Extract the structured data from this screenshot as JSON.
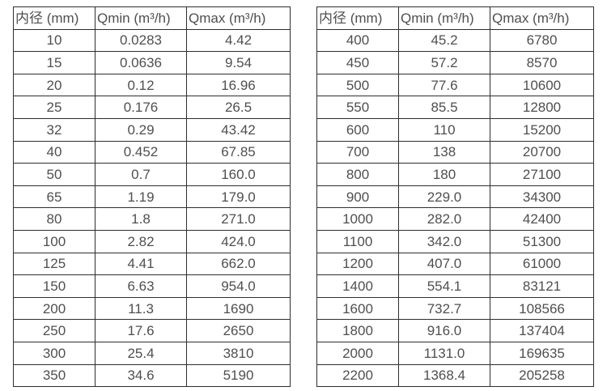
{
  "colors": {
    "border": "#2e2e2e",
    "text": "#4f4f4f",
    "background": "#ffffff"
  },
  "columns": [
    "内径 (mm)",
    "Qmin (m³/h)",
    "Qmax (m³/h)"
  ],
  "tables": [
    {
      "rows": [
        [
          "10",
          "0.0283",
          "4.42"
        ],
        [
          "15",
          "0.0636",
          "9.54"
        ],
        [
          "20",
          "0.12",
          "16.96"
        ],
        [
          "25",
          "0.176",
          "26.5"
        ],
        [
          "32",
          "0.29",
          "43.42"
        ],
        [
          "40",
          "0.452",
          "67.85"
        ],
        [
          "50",
          "0.7",
          "160.0"
        ],
        [
          "65",
          "1.19",
          "179.0"
        ],
        [
          "80",
          "1.8",
          "271.0"
        ],
        [
          "100",
          "2.82",
          "424.0"
        ],
        [
          "125",
          "4.41",
          "662.0"
        ],
        [
          "150",
          "6.63",
          "954.0"
        ],
        [
          "200",
          "11.3",
          "1690"
        ],
        [
          "250",
          "17.6",
          "2650"
        ],
        [
          "300",
          "25.4",
          "3810"
        ],
        [
          "350",
          "34.6",
          "5190"
        ]
      ]
    },
    {
      "rows": [
        [
          "400",
          "45.2",
          "6780"
        ],
        [
          "450",
          "57.2",
          "8570"
        ],
        [
          "500",
          "77.6",
          "10600"
        ],
        [
          "550",
          "85.5",
          "12800"
        ],
        [
          "600",
          "110",
          "15200"
        ],
        [
          "700",
          "138",
          "20700"
        ],
        [
          "800",
          "180",
          "27100"
        ],
        [
          "900",
          "229.0",
          "34300"
        ],
        [
          "1000",
          "282.0",
          "42400"
        ],
        [
          "1100",
          "342.0",
          "51300"
        ],
        [
          "1200",
          "407.0",
          "61000"
        ],
        [
          "1400",
          "554.1",
          "83121"
        ],
        [
          "1600",
          "732.7",
          "108566"
        ],
        [
          "1800",
          "916.0",
          "137404"
        ],
        [
          "2000",
          "1131.0",
          "169635"
        ],
        [
          "2200",
          "1368.4",
          "205258"
        ]
      ]
    }
  ]
}
